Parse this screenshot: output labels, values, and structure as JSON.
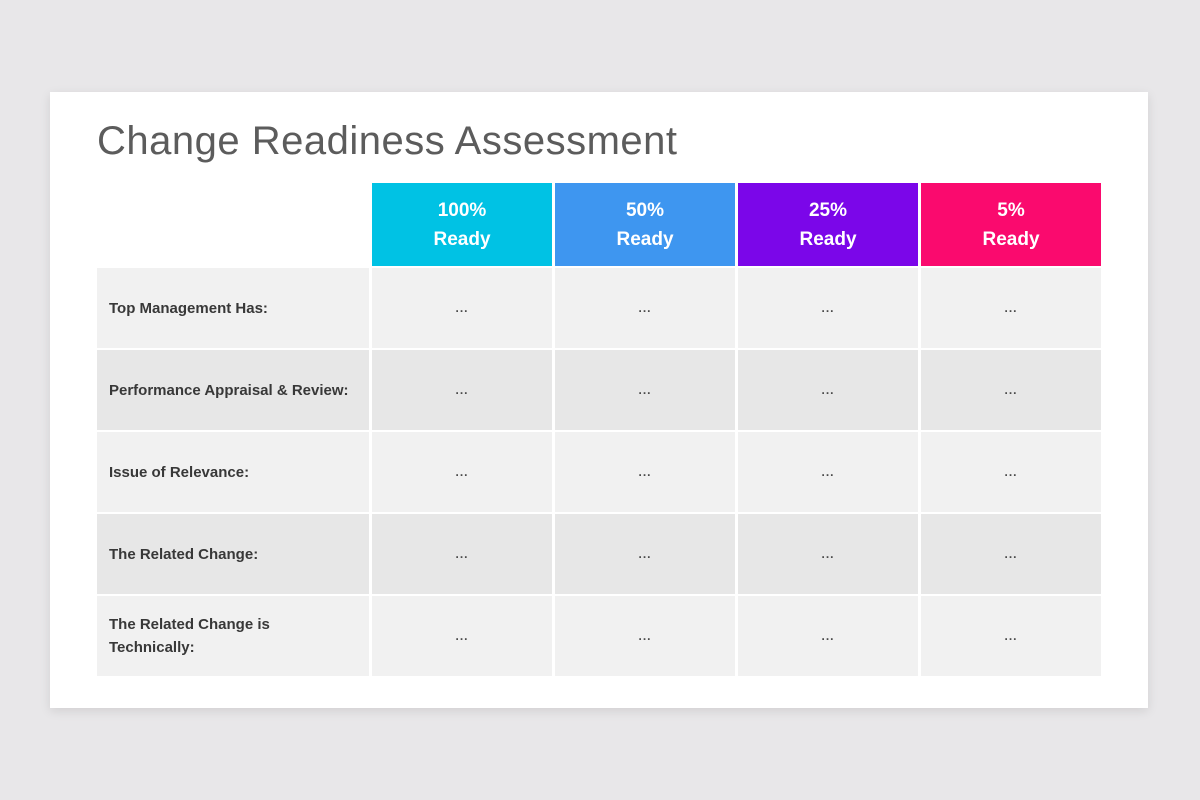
{
  "page": {
    "background_color": "#e8e7e9",
    "card_color": "#ffffff"
  },
  "title": "Change Readiness Assessment",
  "table": {
    "columns": [
      {
        "percent": "100%",
        "label": "Ready",
        "color": "#00c2e4"
      },
      {
        "percent": "50%",
        "label": "Ready",
        "color": "#3e96f0"
      },
      {
        "percent": "25%",
        "label": "Ready",
        "color": "#7b06e9"
      },
      {
        "percent": "5%",
        "label": "Ready",
        "color": "#fa0a6e"
      }
    ],
    "rows": [
      {
        "label": "Top Management Has:",
        "cells": [
          "...",
          "...",
          "...",
          "..."
        ]
      },
      {
        "label": "Performance Appraisal & Review:",
        "cells": [
          "...",
          "...",
          "...",
          "..."
        ]
      },
      {
        "label": "Issue of Relevance:",
        "cells": [
          "...",
          "...",
          "...",
          "..."
        ]
      },
      {
        "label": "The Related Change:",
        "cells": [
          "...",
          "...",
          "...",
          "..."
        ]
      },
      {
        "label": "The Related Change is Technically:",
        "cells": [
          "...",
          "...",
          "...",
          "..."
        ]
      }
    ],
    "row_colors": {
      "odd": "#f1f1f1",
      "even": "#e7e7e7"
    }
  }
}
